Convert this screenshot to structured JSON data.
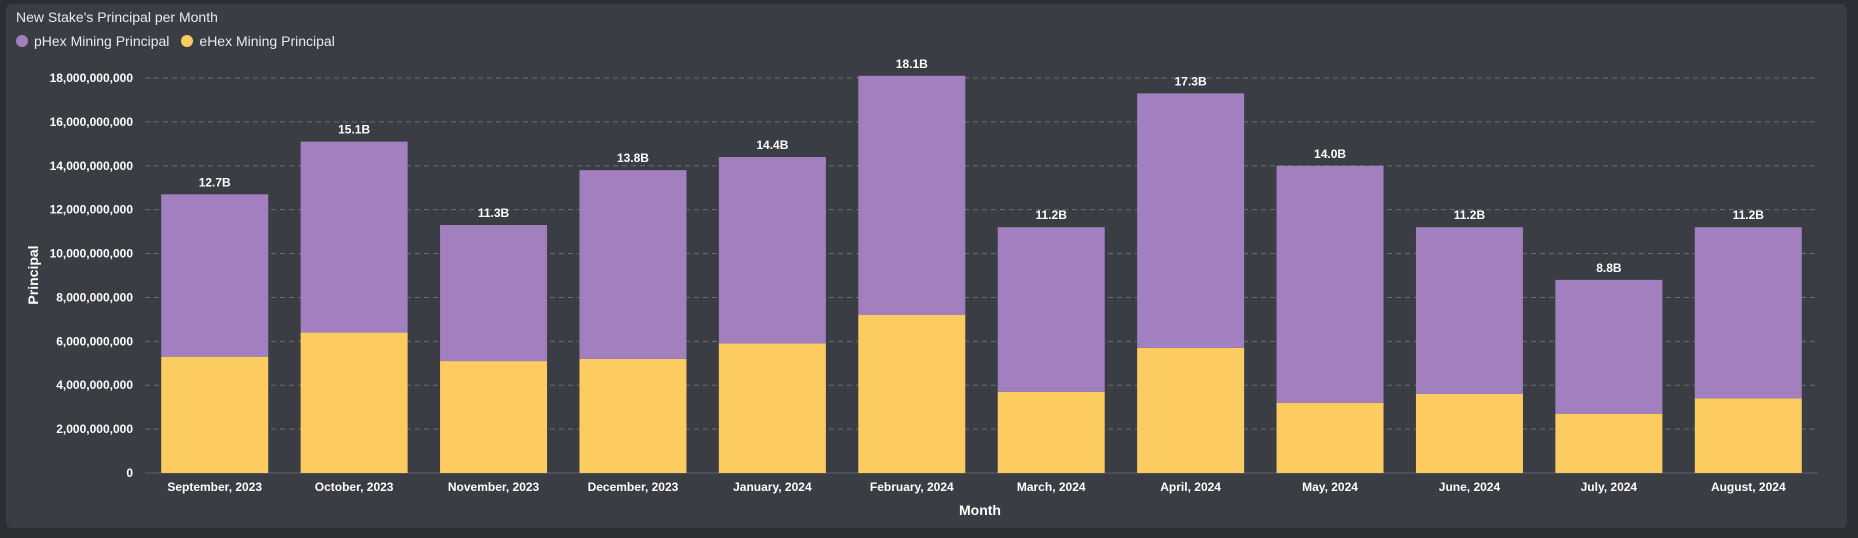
{
  "chart_data": {
    "type": "bar",
    "stacked": true,
    "title": "New Stake's Principal per Month",
    "xlabel": "Month",
    "ylabel": "Principal",
    "ylim": [
      0,
      18000000000
    ],
    "yticks": [
      0,
      2000000000,
      4000000000,
      6000000000,
      8000000000,
      10000000000,
      12000000000,
      14000000000,
      16000000000,
      18000000000
    ],
    "ytick_labels": [
      "0",
      "2,000,000,000",
      "4,000,000,000",
      "6,000,000,000",
      "8,000,000,000",
      "10,000,000,000",
      "12,000,000,000",
      "14,000,000,000",
      "16,000,000,000",
      "18,000,000,000"
    ],
    "grid": true,
    "legend_position": "top-left",
    "categories": [
      "September, 2023",
      "October, 2023",
      "November, 2023",
      "December, 2023",
      "January, 2024",
      "February, 2024",
      "March, 2024",
      "April, 2024",
      "May, 2024",
      "June, 2024",
      "July, 2024",
      "August, 2024"
    ],
    "series": [
      {
        "name": "pHex Mining Principal",
        "color": "#a27fbe",
        "values": [
          7400000000,
          8700000000,
          6200000000,
          8600000000,
          8500000000,
          10900000000,
          7500000000,
          11600000000,
          10800000000,
          7600000000,
          6100000000,
          7800000000
        ]
      },
      {
        "name": "eHex Mining Principal",
        "color": "#fccc61",
        "values": [
          5300000000,
          6400000000,
          5100000000,
          5200000000,
          5900000000,
          7200000000,
          3700000000,
          5700000000,
          3200000000,
          3600000000,
          2700000000,
          3400000000
        ]
      }
    ],
    "total_labels": [
      "12.7B",
      "15.1B",
      "11.3B",
      "13.8B",
      "14.4B",
      "18.1B",
      "11.2B",
      "17.3B",
      "14.0B",
      "11.2B",
      "8.8B",
      "11.2B"
    ]
  }
}
